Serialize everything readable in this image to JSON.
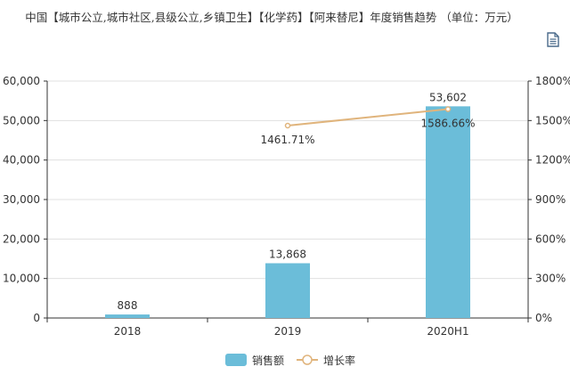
{
  "chart_data": {
    "type": "bar",
    "title": "中国【城市公立,城市社区,县级公立,乡镇卫生】【化学药】【阿来替尼】年度销售趋势 （单位：万元）",
    "categories": [
      "2018",
      "2019",
      "2020H1"
    ],
    "series": [
      {
        "name": "销售额",
        "kind": "bar",
        "axis": "left",
        "color": "#6bbdd9",
        "values": [
          888,
          13868,
          53602
        ],
        "labels": [
          "888",
          "13,868",
          "53,602"
        ]
      },
      {
        "name": "增长率",
        "kind": "line",
        "axis": "right",
        "color": "#e0b47c",
        "values": [
          null,
          1461.71,
          1586.66
        ],
        "labels": [
          "",
          "1461.71%",
          "1586.66%"
        ]
      }
    ],
    "y_left": {
      "min": 0,
      "max": 60000,
      "ticks": [
        0,
        10000,
        20000,
        30000,
        40000,
        50000,
        60000
      ],
      "tick_labels": [
        "0",
        "10,000",
        "20,000",
        "30,000",
        "40,000",
        "50,000",
        "60,000"
      ]
    },
    "y_right": {
      "min": 0,
      "max": 1800,
      "ticks": [
        0,
        300,
        600,
        900,
        1200,
        1500,
        1800
      ],
      "tick_labels": [
        "0%",
        "300%",
        "600%",
        "900%",
        "1200%",
        "1500%",
        "1800%"
      ]
    },
    "grid": true,
    "legend_position": "bottom-center"
  },
  "toolbar": {
    "icon": "document-icon"
  }
}
